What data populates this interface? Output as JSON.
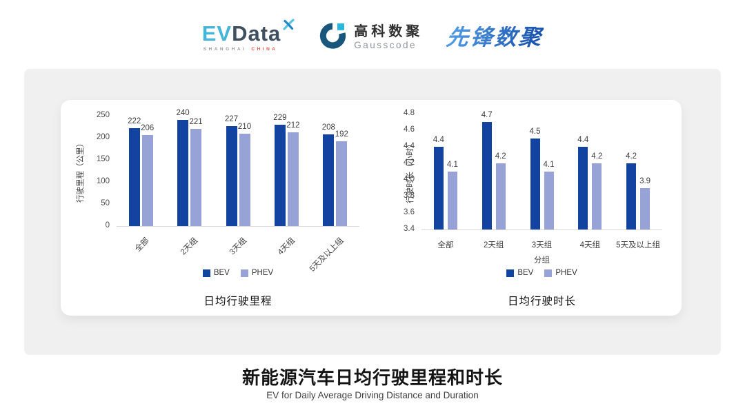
{
  "header": {
    "evdata_logo": {
      "part1": "EV",
      "part2": "Data",
      "sub1": "SHANGHAI",
      "sub2": "CHINA"
    },
    "gausscode_logo": {
      "name_cn": "高科数聚",
      "name_en": "Gausscode"
    },
    "pioneer_logo": {
      "text": "先锋数聚"
    }
  },
  "colors": {
    "bev": "#1243A0",
    "phev": "#97A2D6",
    "evdata_accent": "#45B5D9",
    "evdata_dark": "#3E4F60",
    "evdata_red": "#E2574B",
    "gausscode_dark": "#19567C",
    "gausscode_cyan": "#27B7DC",
    "pioneer_blue": "#2A72C8",
    "panel_gray": "#F0F0F1",
    "baseline_gray": "#D9D9D9"
  },
  "chart_data": [
    {
      "type": "bar",
      "title": "日均行驶里程",
      "ylabel": "行驶里程（公里）",
      "xlabel": "",
      "categories": [
        "全部",
        "2天组",
        "3天组",
        "4天组",
        "5天及以上组"
      ],
      "series": [
        {
          "name": "BEV",
          "values": [
            222,
            240,
            227,
            229,
            208
          ]
        },
        {
          "name": "PHEV",
          "values": [
            206,
            221,
            210,
            212,
            192
          ]
        }
      ],
      "ylim": [
        0,
        250
      ],
      "yticks": [
        0,
        50,
        100,
        150,
        200,
        250
      ],
      "grid": false,
      "legend_position": "bottom",
      "xtick_rotation": 45
    },
    {
      "type": "bar",
      "title": "日均行驶时长",
      "ylabel": "行驶时长（小时）",
      "xlabel": "分组",
      "categories": [
        "全部",
        "2天组",
        "3天组",
        "4天组",
        "5天及以上组"
      ],
      "series": [
        {
          "name": "BEV",
          "values": [
            4.4,
            4.7,
            4.5,
            4.4,
            4.2
          ]
        },
        {
          "name": "PHEV",
          "values": [
            4.1,
            4.2,
            4.1,
            4.2,
            3.9
          ]
        }
      ],
      "ylim": [
        3.4,
        4.8
      ],
      "yticks": [
        3.4,
        3.6,
        3.8,
        4.0,
        4.2,
        4.4,
        4.6,
        4.8
      ],
      "grid": false,
      "legend_position": "bottom",
      "xtick_rotation": 0
    }
  ],
  "footer": {
    "title": "新能源汽车日均行驶里程和时长",
    "subtitle": "EV for Daily Average Driving Distance and Duration"
  }
}
